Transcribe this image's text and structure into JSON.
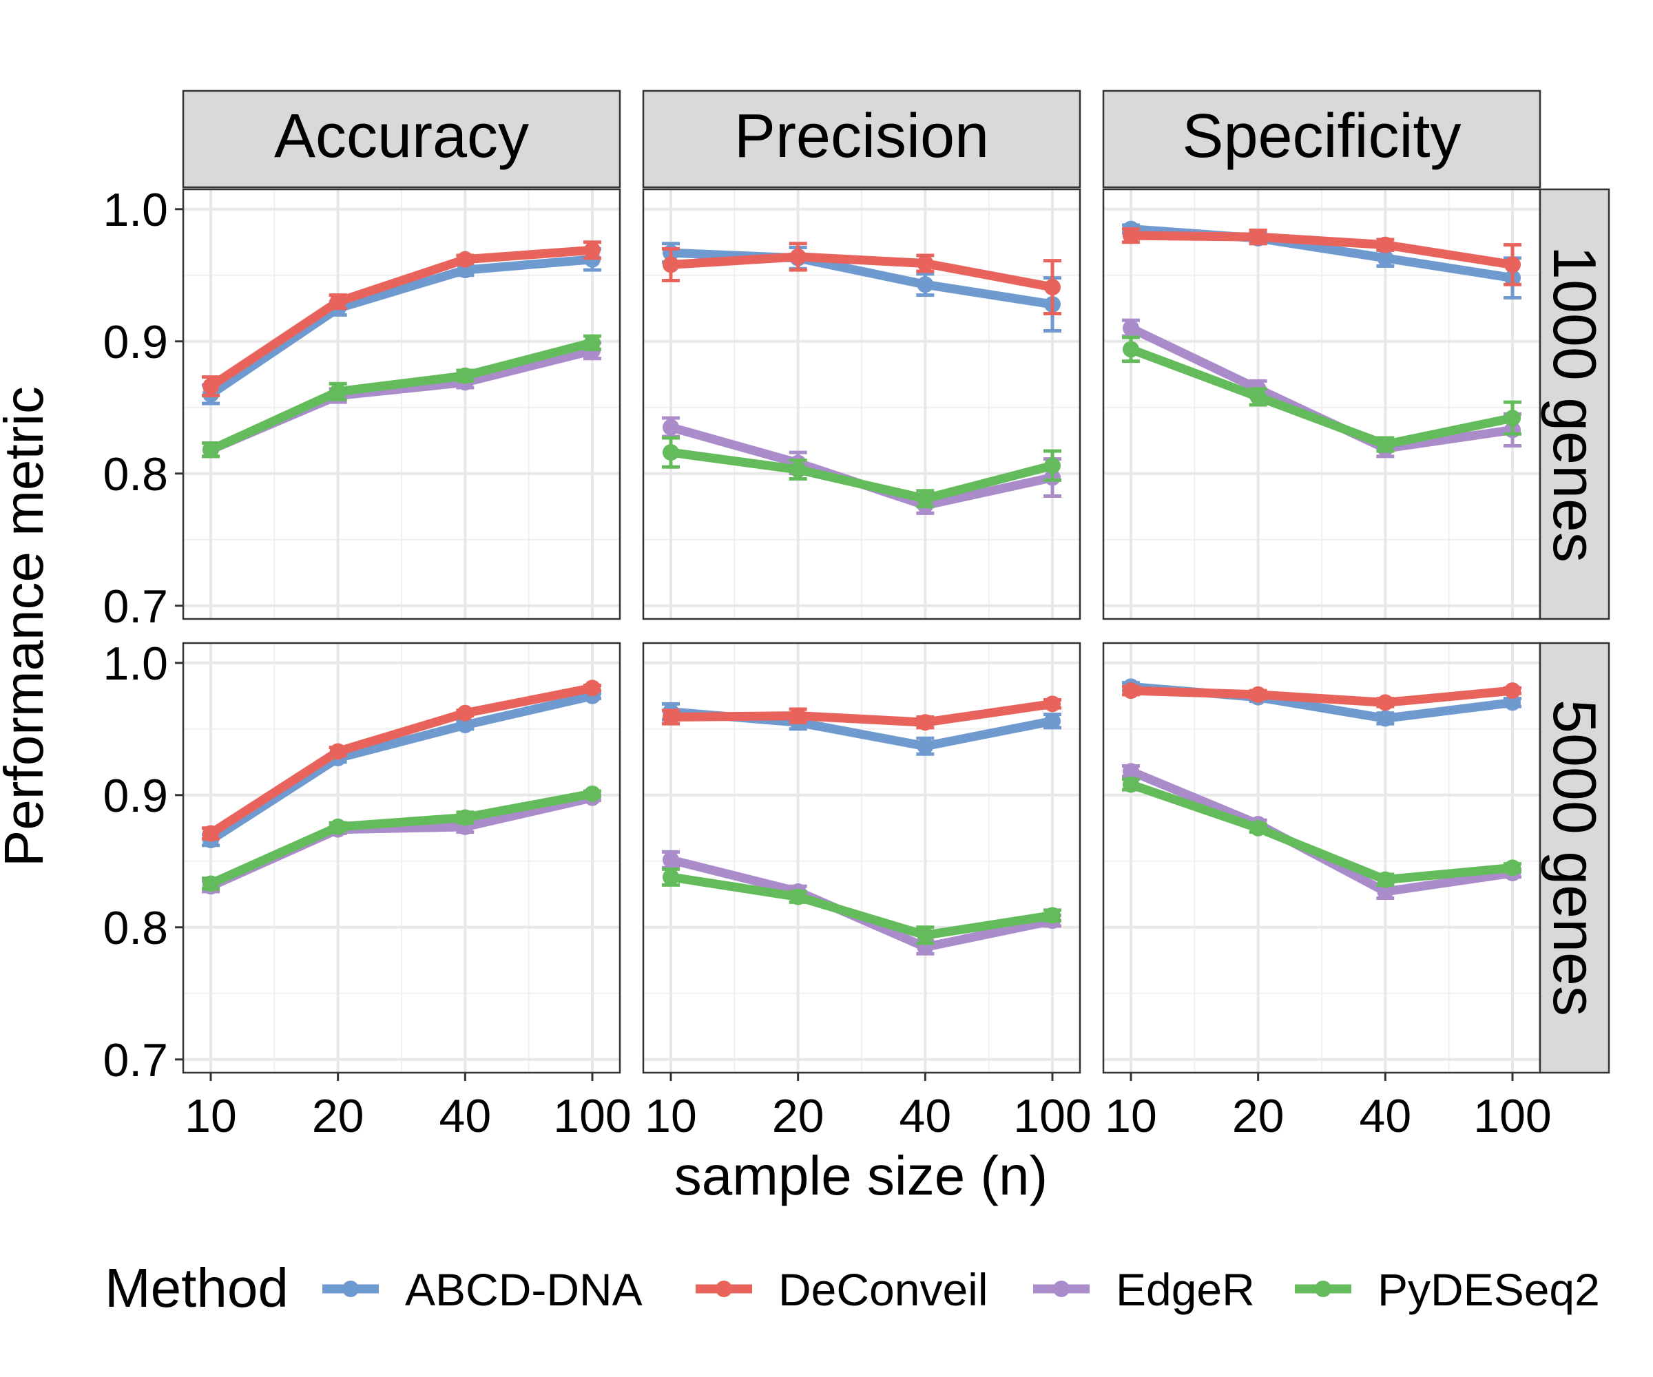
{
  "chart_data": {
    "type": "line",
    "facet_columns": [
      "Accuracy",
      "Precision",
      "Specificity"
    ],
    "facet_rows": [
      "1000 genes",
      "5000 genes"
    ],
    "xlabel": "sample size (n)",
    "ylabel": "Performance metric",
    "x_categories": [
      "10",
      "20",
      "40",
      "100"
    ],
    "y_ticks": [
      "0.7",
      "0.8",
      "0.9",
      "1.0"
    ],
    "ylim": [
      0.69,
      1.015
    ],
    "grid": true,
    "legend": {
      "title": "Method",
      "placement": "bottom"
    },
    "series": [
      {
        "name": "ABCD-DNA",
        "color": "#6f9ad0"
      },
      {
        "name": "DeConveil",
        "color": "#e8635b"
      },
      {
        "name": "EdgeR",
        "color": "#ab8ccb"
      },
      {
        "name": "PyDESeq2",
        "color": "#63bb5b"
      }
    ],
    "panels": [
      {
        "row": 0,
        "col": 0,
        "values": {
          "ABCD-DNA": [
            0.86,
            0.925,
            0.954,
            0.962
          ],
          "DeConveil": [
            0.866,
            0.93,
            0.962,
            0.969
          ],
          "EdgeR": [
            0.818,
            0.859,
            0.869,
            0.893
          ],
          "PyDESeq2": [
            0.818,
            0.862,
            0.874,
            0.899
          ]
        },
        "errors": {
          "ABCD-DNA": [
            0.007,
            0.005,
            0.004,
            0.008
          ],
          "DeConveil": [
            0.007,
            0.005,
            0.003,
            0.006
          ],
          "EdgeR": [
            0.005,
            0.005,
            0.004,
            0.006
          ],
          "PyDESeq2": [
            0.005,
            0.006,
            0.004,
            0.005
          ]
        }
      },
      {
        "row": 0,
        "col": 1,
        "values": {
          "ABCD-DNA": [
            0.967,
            0.963,
            0.943,
            0.928
          ],
          "DeConveil": [
            0.958,
            0.964,
            0.959,
            0.941
          ],
          "EdgeR": [
            0.835,
            0.808,
            0.776,
            0.797
          ],
          "PyDESeq2": [
            0.816,
            0.803,
            0.781,
            0.806
          ]
        },
        "errors": {
          "ABCD-DNA": [
            0.007,
            0.008,
            0.008,
            0.02
          ],
          "DeConveil": [
            0.012,
            0.01,
            0.006,
            0.02
          ],
          "EdgeR": [
            0.007,
            0.008,
            0.006,
            0.014
          ],
          "PyDESeq2": [
            0.011,
            0.007,
            0.006,
            0.011
          ]
        }
      },
      {
        "row": 0,
        "col": 2,
        "values": {
          "ABCD-DNA": [
            0.985,
            0.978,
            0.963,
            0.948
          ],
          "DeConveil": [
            0.98,
            0.979,
            0.973,
            0.958
          ],
          "EdgeR": [
            0.91,
            0.864,
            0.819,
            0.833
          ],
          "PyDESeq2": [
            0.894,
            0.858,
            0.822,
            0.842
          ]
        },
        "errors": {
          "ABCD-DNA": [
            0.003,
            0.004,
            0.006,
            0.015
          ],
          "DeConveil": [
            0.005,
            0.005,
            0.004,
            0.015
          ],
          "EdgeR": [
            0.006,
            0.006,
            0.006,
            0.012
          ],
          "PyDESeq2": [
            0.009,
            0.006,
            0.005,
            0.012
          ]
        }
      },
      {
        "row": 1,
        "col": 0,
        "values": {
          "ABCD-DNA": [
            0.866,
            0.928,
            0.953,
            0.975
          ],
          "DeConveil": [
            0.871,
            0.933,
            0.962,
            0.981
          ],
          "EdgeR": [
            0.831,
            0.874,
            0.876,
            0.898
          ],
          "PyDESeq2": [
            0.833,
            0.876,
            0.883,
            0.901
          ]
        },
        "errors": {
          "ABCD-DNA": [
            0.004,
            0.003,
            0.003,
            0.002
          ],
          "DeConveil": [
            0.004,
            0.003,
            0.002,
            0.002
          ],
          "EdgeR": [
            0.004,
            0.003,
            0.004,
            0.002
          ],
          "PyDESeq2": [
            0.004,
            0.003,
            0.004,
            0.002
          ]
        }
      },
      {
        "row": 1,
        "col": 1,
        "values": {
          "ABCD-DNA": [
            0.963,
            0.955,
            0.937,
            0.956
          ],
          "DeConveil": [
            0.959,
            0.96,
            0.955,
            0.969
          ],
          "EdgeR": [
            0.851,
            0.827,
            0.785,
            0.805
          ],
          "PyDESeq2": [
            0.838,
            0.823,
            0.794,
            0.809
          ]
        },
        "errors": {
          "ABCD-DNA": [
            0.006,
            0.005,
            0.006,
            0.005
          ],
          "DeConveil": [
            0.005,
            0.005,
            0.004,
            0.003
          ],
          "EdgeR": [
            0.006,
            0.004,
            0.005,
            0.004
          ],
          "PyDESeq2": [
            0.006,
            0.004,
            0.006,
            0.004
          ]
        }
      },
      {
        "row": 1,
        "col": 2,
        "values": {
          "ABCD-DNA": [
            0.982,
            0.974,
            0.958,
            0.97
          ],
          "DeConveil": [
            0.979,
            0.976,
            0.97,
            0.979
          ],
          "EdgeR": [
            0.918,
            0.878,
            0.827,
            0.841
          ],
          "PyDESeq2": [
            0.908,
            0.875,
            0.836,
            0.845
          ]
        },
        "errors": {
          "ABCD-DNA": [
            0.003,
            0.003,
            0.004,
            0.003
          ],
          "DeConveil": [
            0.003,
            0.003,
            0.003,
            0.002
          ],
          "EdgeR": [
            0.004,
            0.003,
            0.005,
            0.003
          ],
          "PyDESeq2": [
            0.004,
            0.003,
            0.004,
            0.003
          ]
        }
      }
    ]
  }
}
